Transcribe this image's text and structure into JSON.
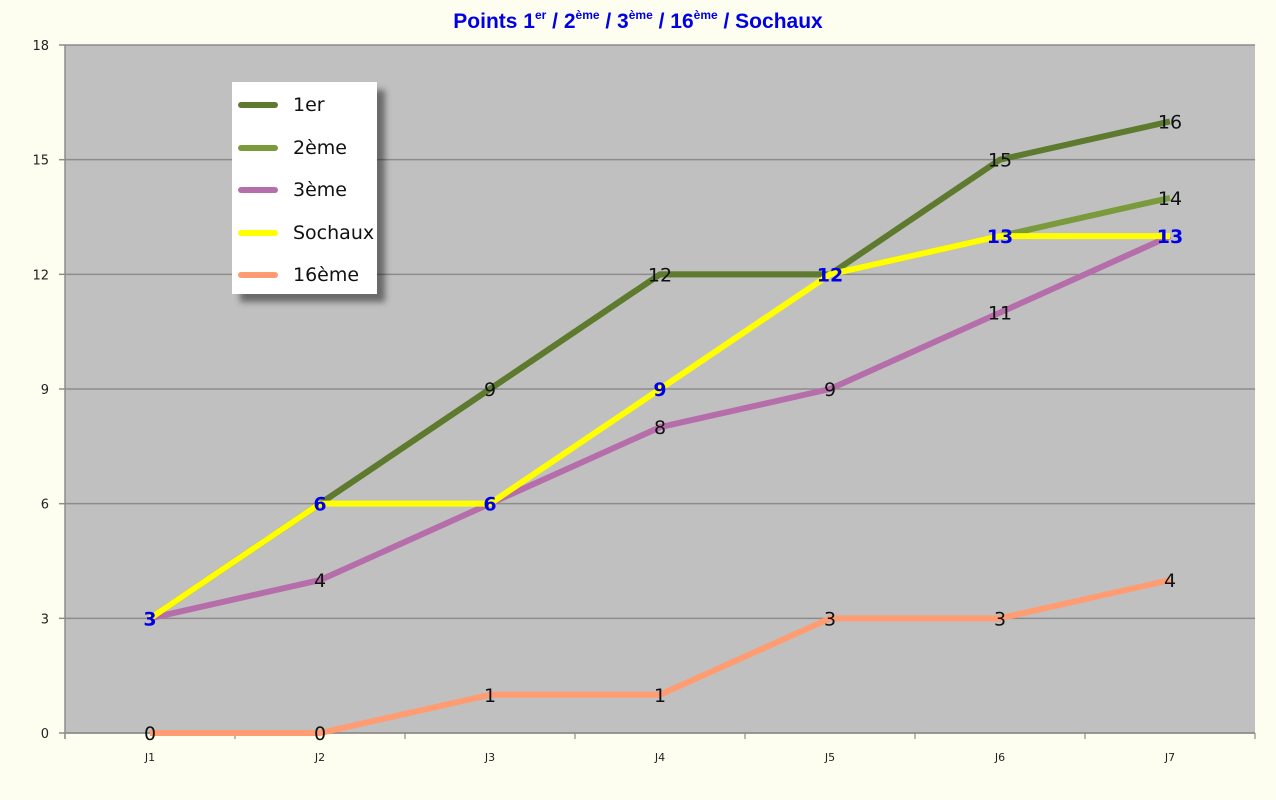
{
  "chart_data": {
    "type": "line",
    "title": "Points 1er / 2ème / 3ème / 16ème / Sochaux",
    "title_parts": [
      {
        "text": "Points 1",
        "sup": "er"
      },
      {
        "text": " / 2",
        "sup": "ème"
      },
      {
        "text": " / 3",
        "sup": "ème"
      },
      {
        "text": " / 16",
        "sup": "ème"
      },
      {
        "text": " / Sochaux",
        "sup": ""
      }
    ],
    "xlabel": "",
    "ylabel": "",
    "categories": [
      "J1",
      "J2",
      "J3",
      "J4",
      "J5",
      "J6",
      "J7"
    ],
    "ylim": [
      0,
      18
    ],
    "yticks": [
      0,
      3,
      6,
      9,
      12,
      15,
      18
    ],
    "grid": true,
    "legend_position": "upper-left-inside",
    "series": [
      {
        "name": "1er",
        "color": "#5E7A2E",
        "values": [
          3,
          6,
          9,
          12,
          12,
          15,
          16
        ],
        "label_color": "#111111"
      },
      {
        "name": "2ème",
        "color": "#7A9A3C",
        "values": [
          3,
          6,
          9,
          12,
          12,
          13,
          14
        ],
        "label_color": "#111111"
      },
      {
        "name": "3ème",
        "color": "#B56EAA",
        "values": [
          3,
          4,
          6,
          8,
          9,
          11,
          13
        ],
        "label_color": "#111111"
      },
      {
        "name": "Sochaux",
        "color": "#FFFF00",
        "values": [
          3,
          6,
          6,
          9,
          12,
          13,
          13
        ],
        "label_color": "#0000E6"
      },
      {
        "name": "16ème",
        "color": "#FF9C72",
        "values": [
          0,
          0,
          1,
          1,
          3,
          3,
          4
        ],
        "label_color": "#111111"
      }
    ],
    "data_labels": [
      {
        "series": "1er",
        "points": [
          "",
          "",
          "9",
          "12",
          "",
          "15",
          "16"
        ]
      },
      {
        "series": "2ème",
        "points": [
          "",
          "",
          "",
          "",
          "",
          "",
          "14"
        ]
      },
      {
        "series": "3ème",
        "points": [
          "",
          "4",
          "",
          "8",
          "9",
          "11",
          ""
        ]
      },
      {
        "series": "Sochaux",
        "points": [
          "3",
          "6",
          "6",
          "9",
          "12",
          "13",
          "13"
        ]
      },
      {
        "series": "16ème",
        "points": [
          "0",
          "0",
          "1",
          "1",
          "3",
          "3",
          "4"
        ]
      }
    ]
  },
  "colors": {
    "page_background": "#FEFEF0",
    "plot_background": "#C0C0C0",
    "gridline": "#8C8C8C",
    "title": "#0000E6"
  }
}
